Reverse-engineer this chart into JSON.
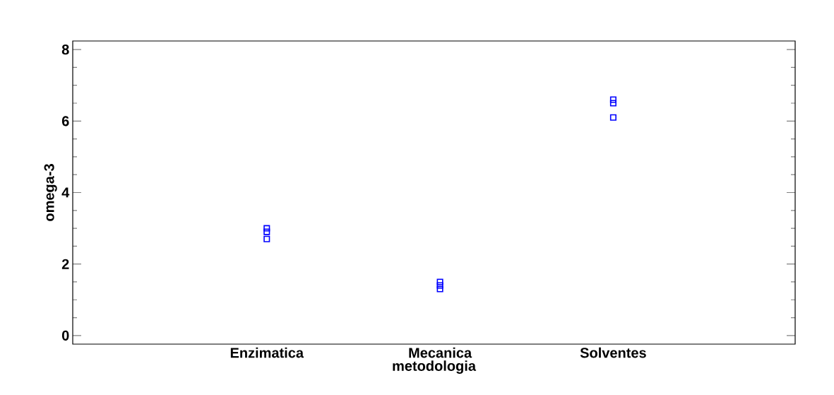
{
  "chart_data": {
    "type": "scatter",
    "xlabel": "metodologia",
    "ylabel": "omega-3",
    "categories": [
      "Enzimatica",
      "Mecanica",
      "Solventes"
    ],
    "series": [
      {
        "color": "#0000ff",
        "x": [
          "Enzimatica",
          "Enzimatica",
          "Enzimatica",
          "Mecanica",
          "Mecanica",
          "Mecanica",
          "Solventes",
          "Solventes",
          "Solventes"
        ],
        "values": [
          3.0,
          2.9,
          2.7,
          1.5,
          1.4,
          1.3,
          6.6,
          6.5,
          6.1
        ]
      }
    ],
    "ylim": [
      -0.24,
      8.24
    ],
    "yticks": [
      0,
      {
        "value": 0.5,
        "label": null
      },
      {
        "value": 1,
        "label": null
      },
      {
        "value": 1.5,
        "label": null
      },
      2,
      {
        "value": 2.5,
        "label": null
      },
      {
        "value": 3,
        "label": null
      },
      {
        "value": 3.5,
        "label": null
      },
      4,
      {
        "value": 4.5,
        "label": null
      },
      {
        "value": 5,
        "label": null
      },
      {
        "value": 5.5,
        "label": null
      },
      6,
      {
        "value": 6.5,
        "label": null
      },
      {
        "value": 7,
        "label": null
      },
      {
        "value": 7.5,
        "label": null
      },
      8
    ],
    "grid": false,
    "marker": "square"
  }
}
